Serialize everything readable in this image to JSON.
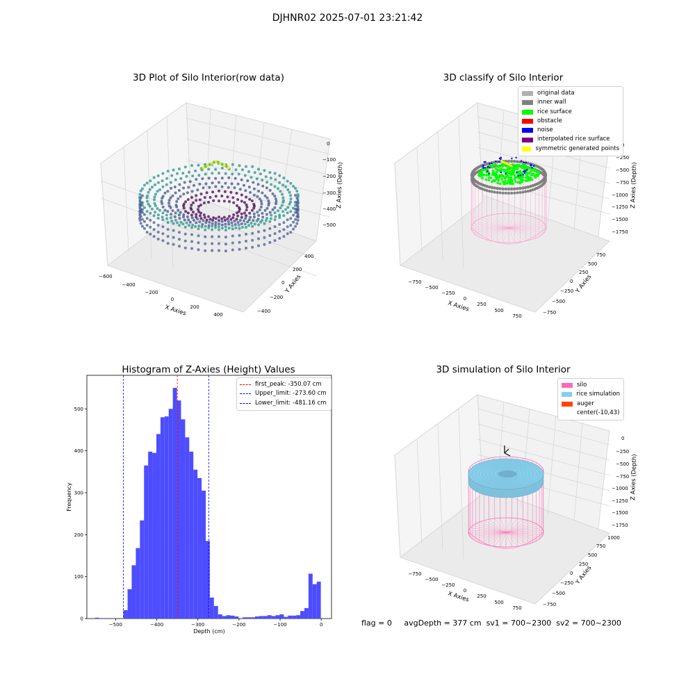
{
  "figure_title": "DJHNR02 2025-07-01 23:21:42",
  "footer": {
    "flag": "flag = 0",
    "avg_depth": "avgDepth = 377 cm",
    "sv1": "sv1 = 700~2300",
    "sv2": "sv2 = 700~2300"
  },
  "chart_data": [
    {
      "type": "scatter",
      "title": "3D Plot of Silo Interior(row data)",
      "xlabel": "X Axies",
      "ylabel": "Y Axies",
      "zlabel": "Z Axies (Depth)",
      "xticks": [
        "−600",
        "−400",
        "−200",
        "0",
        "200",
        "400"
      ],
      "yticks": [
        "−400",
        "−200",
        "0",
        "200",
        "400"
      ],
      "zticks": [
        "0",
        "−100",
        "−200",
        "−300",
        "−400",
        "−500"
      ],
      "xlim": [
        -600,
        450
      ],
      "ylim": [
        -450,
        450
      ],
      "zlim": [
        -560,
        0
      ],
      "colormap": "viridis"
    },
    {
      "type": "scatter",
      "title": "3D classify of Silo Interior",
      "xlabel": "X Axies",
      "ylabel": "Y Axies",
      "zlabel": "Z Axies (Depth)",
      "xticks": [
        "−750",
        "−500",
        "−250",
        "0",
        "250",
        "500",
        "750"
      ],
      "yticks": [
        "−750",
        "−500",
        "−250",
        "0",
        "250",
        "500",
        "750"
      ],
      "zticks": [
        "0",
        "−250",
        "−500",
        "−750",
        "−1000",
        "−1250",
        "−1500",
        "−1750"
      ],
      "legend": [
        {
          "label": "original data",
          "color": "#b0b0b0"
        },
        {
          "label": "inner wall",
          "color": "#808080"
        },
        {
          "label": "rice surface",
          "color": "#00ff00"
        },
        {
          "label": "obstacle",
          "color": "#ff0000"
        },
        {
          "label": "noise",
          "color": "#0000ff"
        },
        {
          "label": "interpolated rice surface",
          "color": "#800080"
        },
        {
          "label": "symmetric generated points",
          "color": "#ffff00"
        }
      ]
    },
    {
      "type": "bar",
      "title": "Histogram of Z-Axies (Height) Values",
      "xlabel": "Depth (cm)",
      "ylabel": "Frequency",
      "xlim": [
        -570,
        25
      ],
      "ylim": [
        0,
        580
      ],
      "xticks": [
        -500,
        -400,
        -300,
        -200,
        -100,
        0
      ],
      "yticks": [
        0,
        100,
        200,
        300,
        400,
        500
      ],
      "bin_width": 10,
      "bins": [
        {
          "x": -550,
          "y": 2
        },
        {
          "x": -540,
          "y": 0
        },
        {
          "x": -530,
          "y": 0
        },
        {
          "x": -520,
          "y": 0
        },
        {
          "x": -510,
          "y": 0
        },
        {
          "x": -500,
          "y": 0
        },
        {
          "x": -490,
          "y": 0
        },
        {
          "x": -481,
          "y": 20
        },
        {
          "x": -471,
          "y": 70
        },
        {
          "x": -461,
          "y": 127
        },
        {
          "x": -451,
          "y": 168
        },
        {
          "x": -441,
          "y": 234
        },
        {
          "x": -431,
          "y": 365
        },
        {
          "x": -421,
          "y": 398
        },
        {
          "x": -411,
          "y": 395
        },
        {
          "x": -401,
          "y": 440
        },
        {
          "x": -391,
          "y": 480
        },
        {
          "x": -381,
          "y": 482
        },
        {
          "x": -371,
          "y": 500
        },
        {
          "x": -361,
          "y": 550
        },
        {
          "x": -351,
          "y": 520
        },
        {
          "x": -341,
          "y": 475
        },
        {
          "x": -331,
          "y": 432
        },
        {
          "x": -321,
          "y": 398
        },
        {
          "x": -311,
          "y": 355
        },
        {
          "x": -301,
          "y": 335
        },
        {
          "x": -291,
          "y": 305
        },
        {
          "x": -281,
          "y": 185
        },
        {
          "x": -271,
          "y": 50
        },
        {
          "x": -261,
          "y": 30
        },
        {
          "x": -251,
          "y": 10
        },
        {
          "x": -241,
          "y": 6
        },
        {
          "x": -231,
          "y": 8
        },
        {
          "x": -221,
          "y": 7
        },
        {
          "x": -211,
          "y": 5
        },
        {
          "x": -201,
          "y": 0
        },
        {
          "x": -191,
          "y": 3
        },
        {
          "x": -181,
          "y": 3
        },
        {
          "x": -171,
          "y": 3
        },
        {
          "x": -161,
          "y": 5
        },
        {
          "x": -151,
          "y": 6
        },
        {
          "x": -141,
          "y": 6
        },
        {
          "x": -131,
          "y": 8
        },
        {
          "x": -121,
          "y": 6
        },
        {
          "x": -111,
          "y": 8
        },
        {
          "x": -101,
          "y": 10
        },
        {
          "x": -91,
          "y": 4
        },
        {
          "x": -81,
          "y": 7
        },
        {
          "x": -71,
          "y": 7
        },
        {
          "x": -61,
          "y": 8
        },
        {
          "x": -51,
          "y": 18
        },
        {
          "x": -41,
          "y": 25
        },
        {
          "x": -31,
          "y": 107
        },
        {
          "x": -21,
          "y": 82
        },
        {
          "x": -11,
          "y": 88
        }
      ],
      "vlines": [
        {
          "label": "first_peak: -350.07 cm",
          "x": -350.07,
          "color": "#ff0000"
        },
        {
          "label": "Upper_limit: -273.60 cm",
          "x": -273.6,
          "color": "#0000ff"
        },
        {
          "label": "Lower_limit: -481.16 cm",
          "x": -481.16,
          "color": "#0000ff"
        }
      ],
      "bar_color": "#4d4dff"
    },
    {
      "type": "scatter",
      "title": "3D simulation of Silo Interior",
      "xlabel": "X Axies",
      "ylabel": "Y Axies",
      "zlabel": "Z Axies (Depth)",
      "xticks": [
        "−750",
        "−500",
        "−250",
        "0",
        "250",
        "500",
        "750"
      ],
      "yticks": [
        "−750",
        "−500",
        "−250",
        "0",
        "250",
        "500",
        "750",
        "1000"
      ],
      "zticks": [
        "0",
        "−250",
        "−500",
        "−750",
        "−1000",
        "−1250",
        "−1500",
        "−1750"
      ],
      "legend": [
        {
          "label": "silo",
          "color": "#ff69b4"
        },
        {
          "label": "rice simulation",
          "color": "#87ceeb"
        },
        {
          "label": "auger",
          "color": "#ff4500"
        },
        {
          "label": "center(-10,43)",
          "color": "#ffffff"
        }
      ]
    }
  ]
}
